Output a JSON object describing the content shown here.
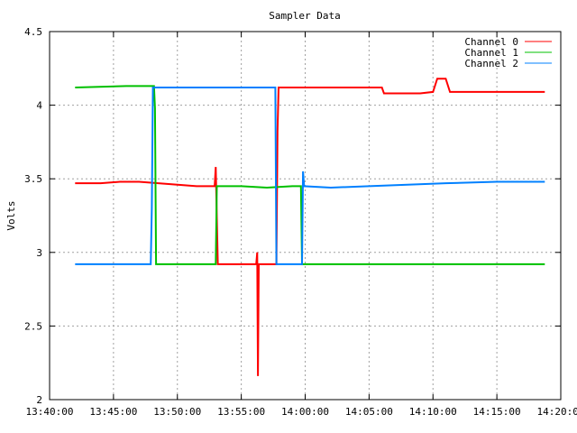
{
  "chart_data": {
    "type": "line",
    "title": "Sampler Data",
    "xlabel": "",
    "ylabel": "Volts",
    "xlim": [
      "13:40:00",
      "14:20:00"
    ],
    "ylim": [
      2,
      4.5
    ],
    "x_ticks": [
      "13:40:00",
      "13:45:00",
      "13:50:00",
      "13:55:00",
      "14:00:00",
      "14:05:00",
      "14:10:00",
      "14:15:00",
      "14:20:00"
    ],
    "y_ticks": [
      "2",
      "2.5",
      "3",
      "3.5",
      "4",
      "4.5"
    ],
    "grid": true,
    "legend_position": "top-right",
    "series": [
      {
        "name": "Channel 0",
        "color": "#ff0000",
        "points": [
          [
            "13:42:00",
            3.47
          ],
          [
            "13:44:00",
            3.47
          ],
          [
            "13:45:30",
            3.48
          ],
          [
            "13:47:00",
            3.48
          ],
          [
            "13:48:30",
            3.47
          ],
          [
            "13:50:00",
            3.46
          ],
          [
            "13:51:30",
            3.45
          ],
          [
            "13:52:55",
            3.45
          ],
          [
            "13:53:00",
            3.58
          ],
          [
            "13:53:10",
            2.92
          ],
          [
            "13:56:10",
            2.92
          ],
          [
            "13:56:15",
            3.0
          ],
          [
            "13:56:18",
            2.16
          ],
          [
            "13:56:22",
            2.92
          ],
          [
            "13:57:45",
            2.92
          ],
          [
            "13:57:50",
            3.82
          ],
          [
            "13:57:55",
            4.12
          ],
          [
            "14:00:00",
            4.12
          ],
          [
            "14:03:00",
            4.12
          ],
          [
            "14:06:00",
            4.12
          ],
          [
            "14:06:10",
            4.08
          ],
          [
            "14:09:00",
            4.08
          ],
          [
            "14:10:00",
            4.09
          ],
          [
            "14:10:20",
            4.18
          ],
          [
            "14:11:00",
            4.18
          ],
          [
            "14:11:20",
            4.09
          ],
          [
            "14:15:00",
            4.09
          ],
          [
            "14:18:45",
            4.09
          ]
        ]
      },
      {
        "name": "Channel 1",
        "color": "#00c000",
        "points": [
          [
            "13:42:00",
            4.12
          ],
          [
            "13:46:00",
            4.13
          ],
          [
            "13:48:10",
            4.13
          ],
          [
            "13:48:15",
            3.98
          ],
          [
            "13:48:20",
            2.92
          ],
          [
            "13:53:00",
            2.92
          ],
          [
            "13:53:05",
            3.45
          ],
          [
            "13:55:00",
            3.45
          ],
          [
            "13:57:00",
            3.44
          ],
          [
            "13:59:00",
            3.45
          ],
          [
            "13:59:40",
            3.45
          ],
          [
            "13:59:45",
            2.92
          ],
          [
            "14:05:00",
            2.92
          ],
          [
            "14:10:00",
            2.92
          ],
          [
            "14:15:00",
            2.92
          ],
          [
            "14:18:45",
            2.92
          ]
        ]
      },
      {
        "name": "Channel 2",
        "color": "#0080ff",
        "points": [
          [
            "13:42:00",
            2.92
          ],
          [
            "13:46:00",
            2.92
          ],
          [
            "13:47:55",
            2.92
          ],
          [
            "13:48:00",
            3.3
          ],
          [
            "13:48:05",
            4.12
          ],
          [
            "13:50:00",
            4.12
          ],
          [
            "13:54:00",
            4.12
          ],
          [
            "13:57:40",
            4.12
          ],
          [
            "13:57:45",
            2.92
          ],
          [
            "13:59:45",
            2.92
          ],
          [
            "13:59:50",
            3.55
          ],
          [
            "13:59:55",
            3.45
          ],
          [
            "14:02:00",
            3.44
          ],
          [
            "14:05:00",
            3.45
          ],
          [
            "14:08:00",
            3.46
          ],
          [
            "14:11:00",
            3.47
          ],
          [
            "14:15:00",
            3.48
          ],
          [
            "14:18:45",
            3.48
          ]
        ]
      }
    ]
  }
}
